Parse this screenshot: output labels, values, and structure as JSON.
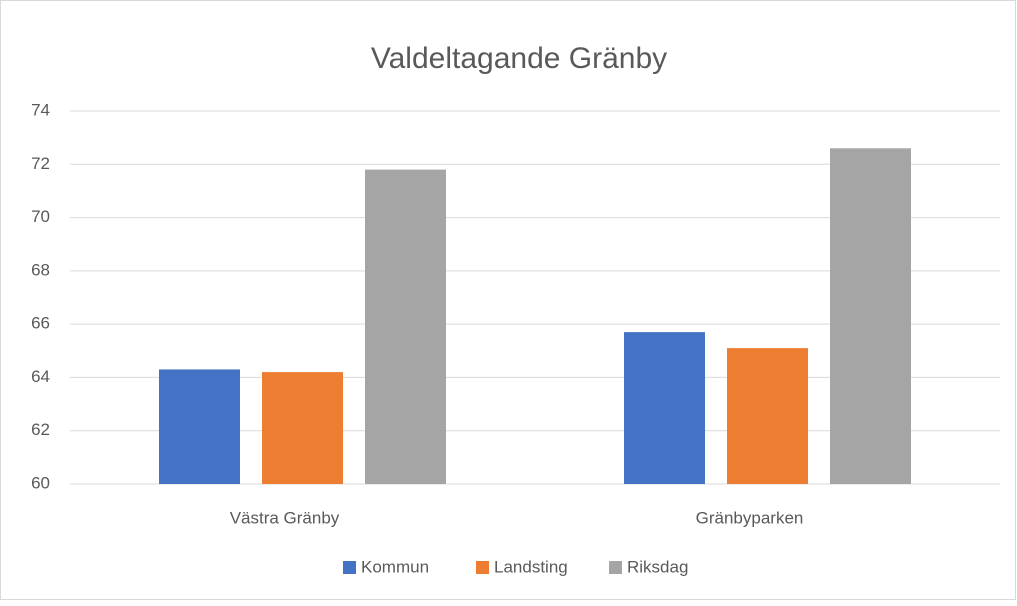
{
  "chart_data": {
    "type": "bar",
    "title": "Valdeltagande Gränby",
    "categories": [
      "Västra Gränby",
      "Gränbyparken"
    ],
    "series": [
      {
        "name": "Kommun",
        "color": "#4472c4",
        "values": [
          64.3,
          65.7
        ]
      },
      {
        "name": "Landsting",
        "color": "#ed7d31",
        "values": [
          64.2,
          65.1
        ]
      },
      {
        "name": "Riksdag",
        "color": "#a5a5a5",
        "values": [
          71.8,
          72.6
        ]
      }
    ],
    "ylim": [
      60,
      74
    ],
    "yticks": [
      60,
      62,
      64,
      66,
      68,
      70,
      72,
      74
    ],
    "grid": true,
    "legend": "bottom"
  }
}
